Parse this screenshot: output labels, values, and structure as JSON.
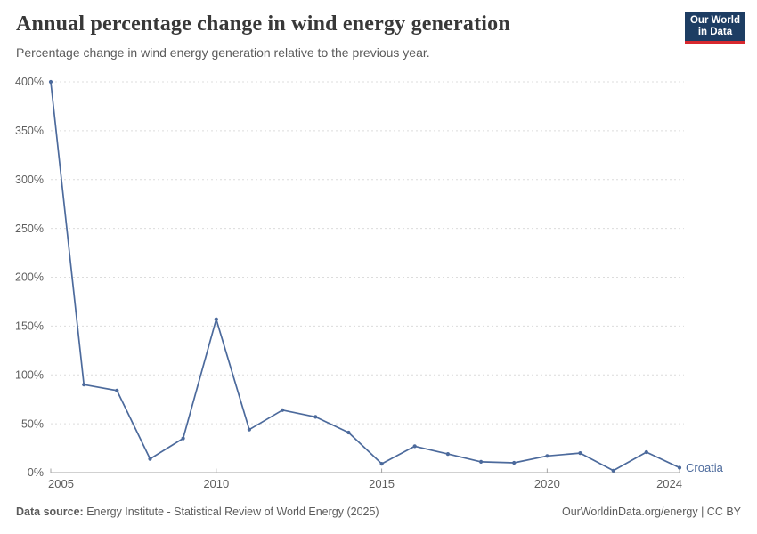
{
  "header": {
    "title": "Annual percentage change in wind energy generation",
    "subtitle": "Percentage change in wind energy generation relative to the previous year.",
    "logo": {
      "line1": "Our World",
      "line2": "in Data"
    }
  },
  "footer": {
    "source_label": "Data source:",
    "source_text": " Energy Institute - Statistical Review of World Energy (2025)",
    "right_text": "OurWorldinData.org/energy | CC BY"
  },
  "colors": {
    "line": "#4C6A9C",
    "entity_label": "#4C6A9C",
    "gridline": "#dcdcdc",
    "axis": "#a3a3a3",
    "tick_label": "#5e5e5e",
    "title": "#383838",
    "subtitle": "#5b5b5b",
    "logo_bg": "#1d3d63",
    "logo_red": "#d7282e"
  },
  "chart_data": {
    "type": "line",
    "title": "Annual percentage change in wind energy generation",
    "subtitle": "Percentage change in wind energy generation relative to the previous year.",
    "xlabel": "",
    "ylabel": "",
    "xlim": [
      2005,
      2024
    ],
    "ylim": [
      0,
      400
    ],
    "x_ticks": [
      2005,
      2010,
      2015,
      2020,
      2024
    ],
    "y_ticks": [
      0,
      50,
      100,
      150,
      200,
      250,
      300,
      350,
      400
    ],
    "y_tick_suffix": "%",
    "grid": "horizontal-dashed",
    "legend_position": "end-of-line-label",
    "x": [
      2005,
      2006,
      2007,
      2008,
      2009,
      2010,
      2011,
      2012,
      2013,
      2014,
      2015,
      2016,
      2017,
      2018,
      2019,
      2020,
      2021,
      2022,
      2023,
      2024
    ],
    "series": [
      {
        "name": "Croatia",
        "values": [
          400,
          90,
          84,
          14,
          35,
          157,
          44,
          64,
          57,
          41,
          9,
          27,
          19,
          11,
          10,
          17,
          20,
          2,
          21,
          5
        ]
      }
    ]
  }
}
